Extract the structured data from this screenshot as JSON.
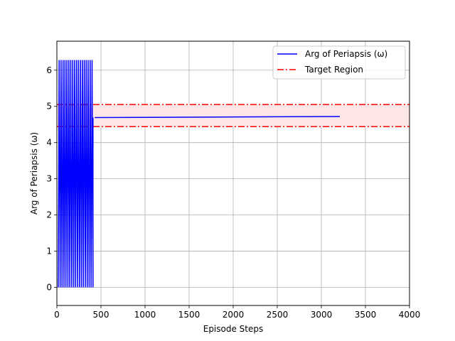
{
  "chart_data": {
    "type": "line",
    "title": "",
    "xlabel": "Episode Steps",
    "ylabel": "Arg of Periapsis (ω)",
    "xlim": [
      0,
      4000
    ],
    "ylim": [
      -0.5,
      6.8
    ],
    "xticks": [
      0,
      500,
      1000,
      1500,
      2000,
      2500,
      3000,
      3500,
      4000
    ],
    "yticks": [
      0,
      1,
      2,
      3,
      4,
      5,
      6
    ],
    "grid": true,
    "legend_position": "top-right",
    "series": [
      {
        "name": "Arg of Periapsis (ω)",
        "color": "#0000ff",
        "style": "solid",
        "oscillation": {
          "x_start": 15,
          "x_end": 410,
          "low": 0.0,
          "high": 6.28,
          "cycles": 18
        },
        "tail": [
          [
            430,
            4.69
          ],
          [
            3210,
            4.72
          ]
        ]
      }
    ],
    "target_region": {
      "name": "Target Region",
      "color": "#ff0000",
      "fill": "#ffe6e6",
      "style": "dashdot",
      "lower": 4.44,
      "upper": 5.05
    }
  }
}
